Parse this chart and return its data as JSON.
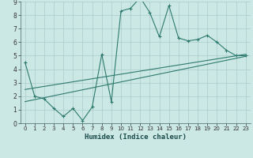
{
  "xlabel": "Humidex (Indice chaleur)",
  "bg_color": "#cce8e4",
  "grid_color": "#aacccc",
  "line_color": "#2d7a6e",
  "xlim": [
    -0.5,
    23.5
  ],
  "ylim": [
    0,
    9
  ],
  "xticks": [
    0,
    1,
    2,
    3,
    4,
    5,
    6,
    7,
    8,
    9,
    10,
    11,
    12,
    13,
    14,
    15,
    16,
    17,
    18,
    19,
    20,
    21,
    22,
    23
  ],
  "yticks": [
    0,
    1,
    2,
    3,
    4,
    5,
    6,
    7,
    8,
    9
  ],
  "data_x": [
    0,
    1,
    2,
    3,
    4,
    5,
    6,
    7,
    8,
    9,
    10,
    11,
    12,
    13,
    14,
    15,
    16,
    17,
    18,
    19,
    20,
    21,
    22,
    23
  ],
  "data_y": [
    4.5,
    2.0,
    1.8,
    1.1,
    0.5,
    1.1,
    0.2,
    1.2,
    5.1,
    1.6,
    8.3,
    8.5,
    9.3,
    8.2,
    6.4,
    8.7,
    6.3,
    6.1,
    6.2,
    6.5,
    6.0,
    5.4,
    5.0,
    5.0
  ],
  "trend1_x": [
    0,
    23
  ],
  "trend1_y": [
    1.6,
    4.95
  ],
  "trend2_x": [
    0,
    23
  ],
  "trend2_y": [
    2.5,
    5.1
  ]
}
